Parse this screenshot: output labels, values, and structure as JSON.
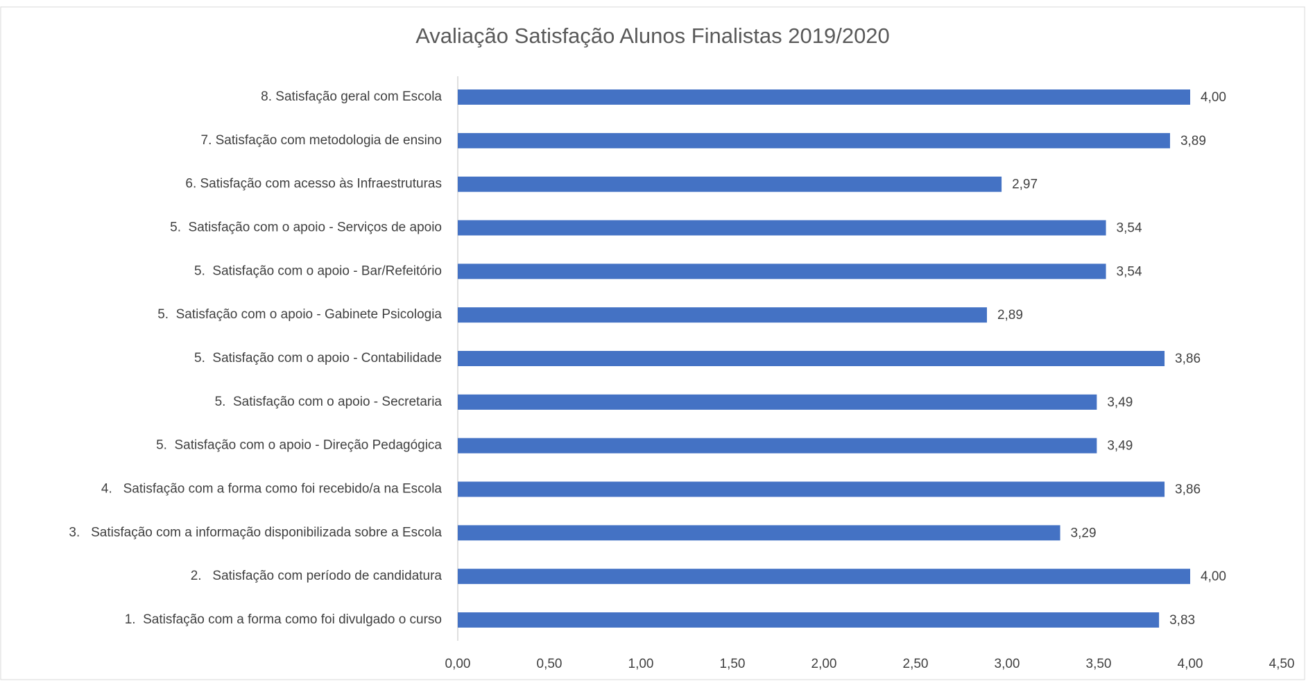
{
  "chart_data": {
    "type": "bar",
    "orientation": "horizontal",
    "title": "Avaliação Satisfação Alunos Finalistas 2019/2020",
    "categories": [
      "1.  Satisfação com a forma como foi divulgado o curso",
      "2.   Satisfação com período de candidatura",
      "3.   Satisfação com a informação disponibilizada sobre a Escola",
      "4.   Satisfação com a forma como foi recebido/a na Escola",
      "5.  Satisfação com o apoio - Direção Pedagógica",
      "5.  Satisfação com o apoio - Secretaria",
      "5.  Satisfação com o apoio - Contabilidade",
      "5.  Satisfação com o apoio - Gabinete Psicologia",
      "5.  Satisfação com o apoio - Bar/Refeitório",
      "5.  Satisfação com o apoio - Serviços de apoio",
      "6. Satisfação com acesso às Infraestruturas",
      "7. Satisfação com metodologia de ensino",
      "8. Satisfação geral com Escola"
    ],
    "values": [
      3.83,
      4.0,
      3.29,
      3.86,
      3.49,
      3.49,
      3.86,
      2.89,
      3.54,
      3.54,
      2.97,
      3.89,
      4.0
    ],
    "value_labels": [
      "3,83",
      "4,00",
      "3,29",
      "3,86",
      "3,49",
      "3,49",
      "3,86",
      "2,89",
      "3,54",
      "3,54",
      "2,97",
      "3,89",
      "4,00"
    ],
    "color": "#4472c4",
    "xlim": [
      0,
      4.5
    ],
    "xticks": [
      {
        "value": 0,
        "label": "0,00"
      },
      {
        "value": 0.5,
        "label": "0,50"
      },
      {
        "value": 1,
        "label": "1,00"
      },
      {
        "value": 1.5,
        "label": "1,50"
      },
      {
        "value": 2,
        "label": "2,00"
      },
      {
        "value": 2.5,
        "label": "2,50"
      },
      {
        "value": 3,
        "label": "3,00"
      },
      {
        "value": 3.5,
        "label": "3,50"
      },
      {
        "value": 4,
        "label": "4,00"
      },
      {
        "value": 4.5,
        "label": "4,50"
      }
    ],
    "grid": false
  }
}
